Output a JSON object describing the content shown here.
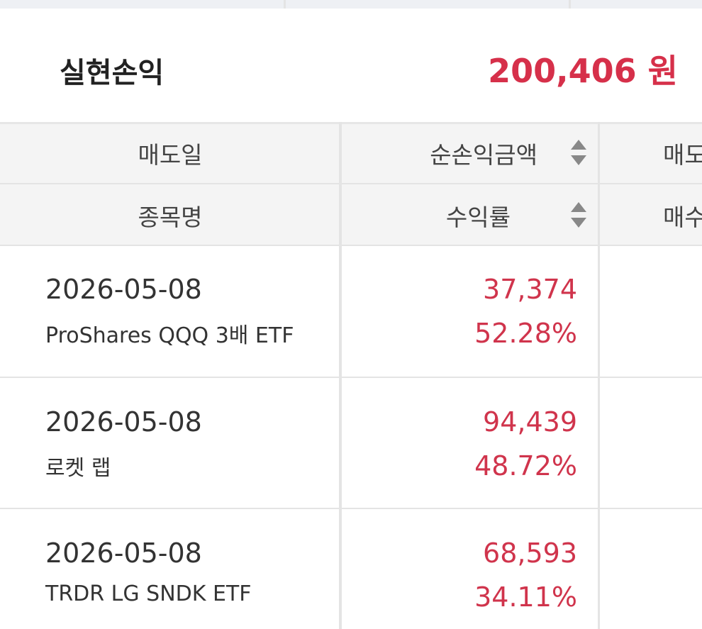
{
  "summary": {
    "label": "실현손익",
    "value": "200,406 원"
  },
  "table": {
    "header": [
      [
        "매도일",
        "순손익금액",
        "매도"
      ],
      [
        "종목명",
        "수익률",
        "매수"
      ]
    ],
    "rows": [
      {
        "date": "2026-05-08",
        "name": "ProShares QQQ 3배 ETF",
        "profit": "37,374",
        "rate": "52.28%"
      },
      {
        "date": "2026-05-08",
        "name": "로켓 랩",
        "profit": "94,439",
        "rate": "48.72%"
      },
      {
        "date": "2026-05-08",
        "name": "TRDR LG SNDK ETF",
        "profit": "68,593",
        "rate": "34.11%"
      }
    ]
  }
}
